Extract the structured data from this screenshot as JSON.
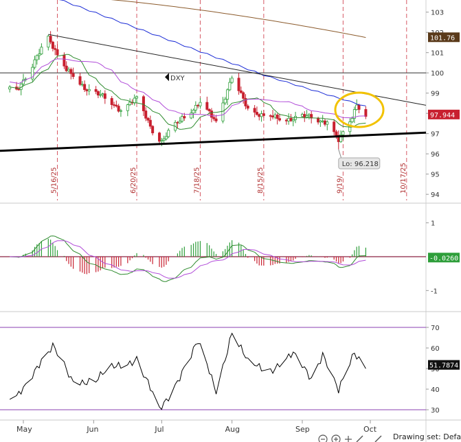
{
  "chart_data": [
    {
      "type": "candlestick",
      "symbol_label": "DXY",
      "yticks": [
        94,
        95,
        96,
        97,
        98,
        99,
        100,
        101,
        102,
        103
      ],
      "ylim": [
        93.7,
        103.6
      ],
      "last_price_tag": "97.944",
      "sma_tag": "101.76",
      "low_annotation": "Lo: 96.218",
      "event_dates": [
        "5/16/25",
        "6/20/25",
        "7/18/25",
        "8/15/25",
        "9/19/",
        "10/17/25"
      ],
      "horizontal_level": 100,
      "series_close_keypoints": [
        {
          "date": "2025-04-28",
          "close": 99.2
        },
        {
          "date": "2025-05-05",
          "close": 100.3
        },
        {
          "date": "2025-05-12",
          "close": 101.8
        },
        {
          "date": "2025-05-20",
          "close": 100.1
        },
        {
          "date": "2025-05-28",
          "close": 99.3
        },
        {
          "date": "2025-06-05",
          "close": 98.8
        },
        {
          "date": "2025-06-13",
          "close": 98.2
        },
        {
          "date": "2025-06-20",
          "close": 98.7
        },
        {
          "date": "2025-06-27",
          "close": 97.2
        },
        {
          "date": "2025-07-01",
          "close": 96.6
        },
        {
          "date": "2025-07-10",
          "close": 97.8
        },
        {
          "date": "2025-07-18",
          "close": 98.5
        },
        {
          "date": "2025-07-25",
          "close": 97.6
        },
        {
          "date": "2025-08-01",
          "close": 99.8
        },
        {
          "date": "2025-08-08",
          "close": 98.2
        },
        {
          "date": "2025-08-15",
          "close": 97.9
        },
        {
          "date": "2025-08-22",
          "close": 97.7
        },
        {
          "date": "2025-08-29",
          "close": 97.8
        },
        {
          "date": "2025-09-05",
          "close": 97.8
        },
        {
          "date": "2025-09-12",
          "close": 97.6
        },
        {
          "date": "2025-09-17",
          "close": 96.6
        },
        {
          "date": "2025-09-22",
          "close": 97.6
        },
        {
          "date": "2025-09-25",
          "close": 98.5
        },
        {
          "date": "2025-09-29",
          "close": 97.9
        }
      ]
    },
    {
      "type": "line",
      "indicator": "MACD",
      "yticks": [
        1,
        -1
      ],
      "value_tag": "-0.0260",
      "ylim": [
        -1.5,
        1.5
      ]
    },
    {
      "type": "line",
      "indicator": "RSI",
      "yticks": [
        30,
        40,
        50,
        60,
        70
      ],
      "value_tag": "51.7874",
      "ylim": [
        25,
        75
      ],
      "series_keypoints": [
        {
          "date": "2025-04-28",
          "value": 35
        },
        {
          "date": "2025-05-07",
          "value": 52
        },
        {
          "date": "2025-05-14",
          "value": 60
        },
        {
          "date": "2025-05-22",
          "value": 45
        },
        {
          "date": "2025-06-02",
          "value": 44
        },
        {
          "date": "2025-06-12",
          "value": 52
        },
        {
          "date": "2025-06-20",
          "value": 55
        },
        {
          "date": "2025-06-30",
          "value": 29
        },
        {
          "date": "2025-07-10",
          "value": 49
        },
        {
          "date": "2025-07-17",
          "value": 62
        },
        {
          "date": "2025-07-25",
          "value": 40
        },
        {
          "date": "2025-08-01",
          "value": 68
        },
        {
          "date": "2025-08-08",
          "value": 52
        },
        {
          "date": "2025-08-18",
          "value": 50
        },
        {
          "date": "2025-08-28",
          "value": 56
        },
        {
          "date": "2025-09-05",
          "value": 46
        },
        {
          "date": "2025-09-10",
          "value": 58
        },
        {
          "date": "2025-09-17",
          "value": 38
        },
        {
          "date": "2025-09-24",
          "value": 58
        },
        {
          "date": "2025-09-29",
          "value": 52
        }
      ]
    }
  ],
  "x_axis": {
    "months": [
      "May",
      "Jun",
      "Jul",
      "Aug",
      "Sep",
      "Oct"
    ]
  },
  "status_bar": {
    "drawing_set_text": "Drawing set: Defaul"
  },
  "colors": {
    "up": "#2e9e3a",
    "down": "#c8202f",
    "sma_blue": "#1a2bd6",
    "sma_brown": "#8b5a2b",
    "sma_purple": "#b04ad8",
    "sma_green": "#2e8b2e",
    "price_tag": "#c8202f",
    "sma_tag_bg": "#5a3a1a",
    "macd_tag": "#2e9e3a",
    "highlight": "#f2c200"
  }
}
